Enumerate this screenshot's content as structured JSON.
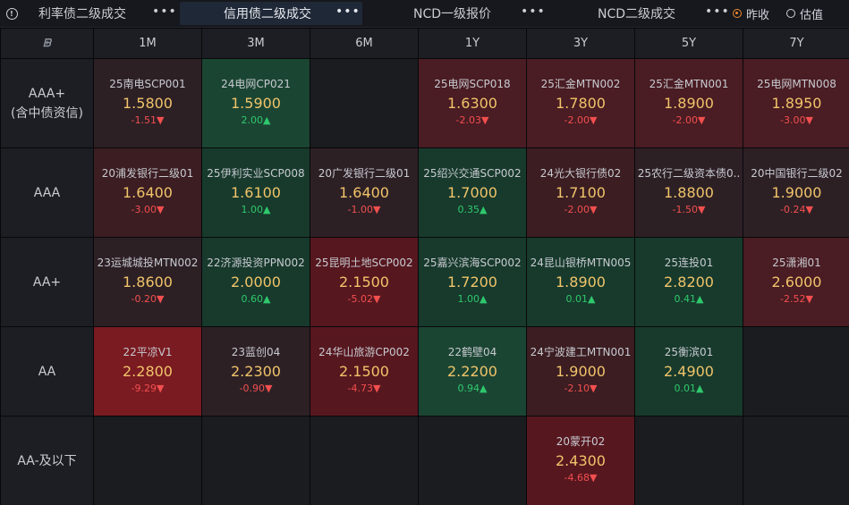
{
  "tabs": [
    {
      "label": "利率债二级成交",
      "more": "•••"
    },
    {
      "label": "信用债二级成交",
      "more": "•••"
    },
    {
      "label": "NCD一级报价",
      "more": "•••"
    },
    {
      "label": "NCD二级成交",
      "more": "•••"
    }
  ],
  "radios": [
    {
      "label": "昨收",
      "checked": true
    },
    {
      "label": "估值",
      "checked": false
    }
  ],
  "columns": [
    "1M",
    "3M",
    "6M",
    "1Y",
    "3Y",
    "5Y",
    "7Y"
  ],
  "rows": [
    {
      "label_line1": "AAA+",
      "label_line2": "(含中债资信)",
      "cells": [
        {
          "name": "25南电SCP001",
          "rate": "1.5800",
          "change": "-1.51▼",
          "dir": "dn",
          "tone": "dim"
        },
        {
          "name": "24电网CP021",
          "rate": "1.5900",
          "change": "2.00▲",
          "dir": "up",
          "tone": "grn2"
        },
        null,
        {
          "name": "25电网SCP018",
          "rate": "1.6300",
          "change": "-2.03▼",
          "dir": "dn",
          "tone": "red2"
        },
        {
          "name": "25汇金MTN002",
          "rate": "1.7800",
          "change": "-2.00▼",
          "dir": "dn",
          "tone": "red2"
        },
        {
          "name": "25汇金MTN001",
          "rate": "1.8900",
          "change": "-2.00▼",
          "dir": "dn",
          "tone": "red2"
        },
        {
          "name": "25电网MTN008",
          "rate": "1.8950",
          "change": "-3.00▼",
          "dir": "dn",
          "tone": "red2"
        }
      ]
    },
    {
      "label_line1": "AAA",
      "label_line2": "",
      "cells": [
        {
          "name": "20浦发银行二级01",
          "rate": "1.6400",
          "change": "-3.00▼",
          "dir": "dn",
          "tone": "red1"
        },
        {
          "name": "25伊利实业SCP008",
          "rate": "1.6100",
          "change": "1.00▲",
          "dir": "up",
          "tone": "grn1"
        },
        {
          "name": "20广发银行二级01",
          "rate": "1.6400",
          "change": "-1.00▼",
          "dir": "dn",
          "tone": "dim"
        },
        {
          "name": "25绍兴交通SCP002",
          "rate": "1.7000",
          "change": "0.35▲",
          "dir": "up",
          "tone": "grn1"
        },
        {
          "name": "24光大银行债02",
          "rate": "1.7100",
          "change": "-2.00▼",
          "dir": "dn",
          "tone": "red1"
        },
        {
          "name": "25农行二级资本债0..",
          "rate": "1.8800",
          "change": "-1.50▼",
          "dir": "dn",
          "tone": "dim"
        },
        {
          "name": "20中国银行二级02",
          "rate": "1.9000",
          "change": "-0.24▼",
          "dir": "dn",
          "tone": "dim"
        }
      ]
    },
    {
      "label_line1": "AA+",
      "label_line2": "",
      "cells": [
        {
          "name": "23运城城投MTN002",
          "rate": "1.8600",
          "change": "-0.20▼",
          "dir": "dn",
          "tone": "dim"
        },
        {
          "name": "22济源投资PPN002",
          "rate": "2.0000",
          "change": "0.60▲",
          "dir": "up",
          "tone": "grn1"
        },
        {
          "name": "25昆明土地SCP002",
          "rate": "2.1500",
          "change": "-5.02▼",
          "dir": "dn",
          "tone": "red3"
        },
        {
          "name": "25嘉兴滨海SCP002",
          "rate": "1.7200",
          "change": "1.00▲",
          "dir": "up",
          "tone": "grn1"
        },
        {
          "name": "24昆山银桥MTN005",
          "rate": "1.8900",
          "change": "0.01▲",
          "dir": "up",
          "tone": "grn1"
        },
        {
          "name": "25连投01",
          "rate": "2.8200",
          "change": "0.41▲",
          "dir": "up",
          "tone": "grn1"
        },
        {
          "name": "25潇湘01",
          "rate": "2.6000",
          "change": "-2.52▼",
          "dir": "dn",
          "tone": "red2"
        }
      ]
    },
    {
      "label_line1": "AA",
      "label_line2": "",
      "cells": [
        {
          "name": "22平凉V1",
          "rate": "2.2800",
          "change": "-9.29▼",
          "dir": "dn",
          "tone": "red4"
        },
        {
          "name": "23蓝创04",
          "rate": "2.2300",
          "change": "-0.90▼",
          "dir": "dn",
          "tone": "dim"
        },
        {
          "name": "24华山旅游CP002",
          "rate": "2.1500",
          "change": "-4.73▼",
          "dir": "dn",
          "tone": "red3"
        },
        {
          "name": "22鹤壁04",
          "rate": "2.2200",
          "change": "0.94▲",
          "dir": "up",
          "tone": "grn2"
        },
        {
          "name": "24宁波建工MTN001",
          "rate": "1.9000",
          "change": "-2.10▼",
          "dir": "dn",
          "tone": "red1"
        },
        {
          "name": "25衡滨01",
          "rate": "2.4900",
          "change": "0.01▲",
          "dir": "up",
          "tone": "grn1"
        },
        null
      ]
    },
    {
      "label_line1": "AA-及以下",
      "label_line2": "",
      "cells": [
        null,
        null,
        null,
        null,
        {
          "name": "20蒙开02",
          "rate": "2.4300",
          "change": "-4.68▼",
          "dir": "dn",
          "tone": "red3"
        },
        null,
        null
      ]
    }
  ]
}
